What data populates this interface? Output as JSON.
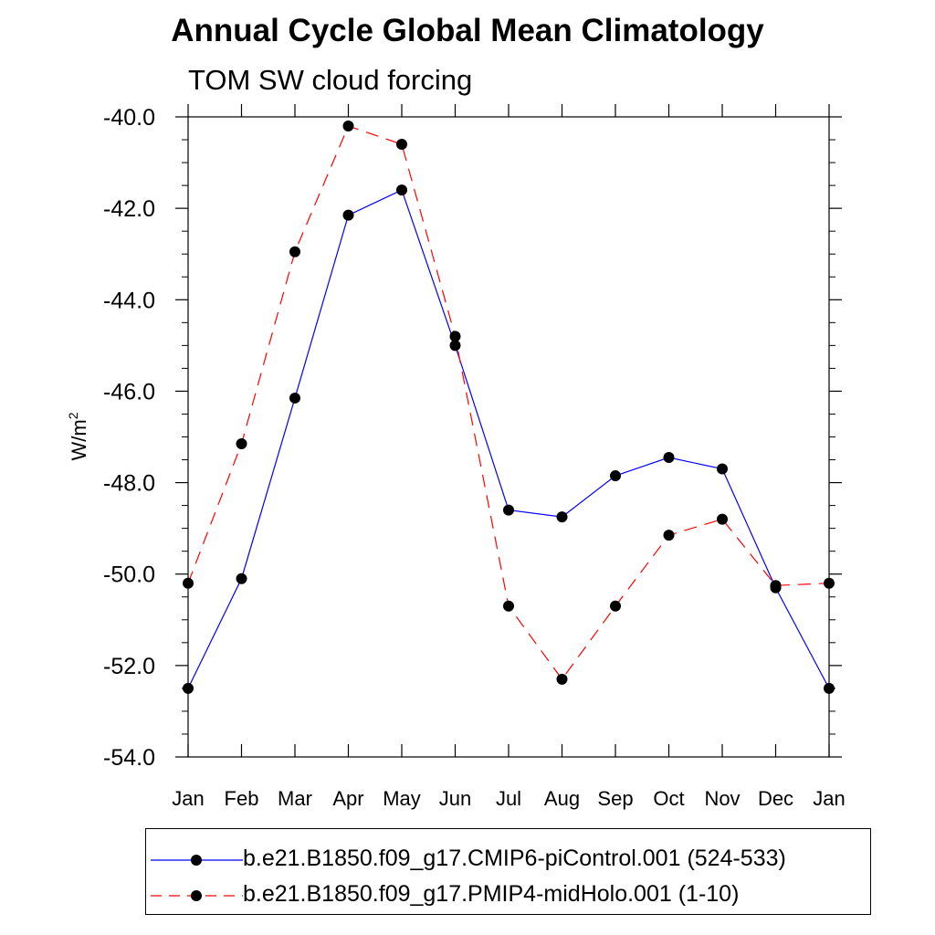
{
  "chart_data": {
    "type": "line",
    "title": "Annual Cycle Global Mean Climatology",
    "subtitle": "TOM SW cloud forcing",
    "xlabel": "",
    "ylabel_base": "W/m",
    "ylabel_sup": "2",
    "categories": [
      "Jan",
      "Feb",
      "Mar",
      "Apr",
      "May",
      "Jun",
      "Jul",
      "Aug",
      "Sep",
      "Oct",
      "Nov",
      "Dec",
      "Jan"
    ],
    "ylim": [
      -54.0,
      -40.0
    ],
    "yticks": [
      "-40.0",
      "-42.0",
      "-44.0",
      "-46.0",
      "-48.0",
      "-50.0",
      "-52.0",
      "-54.0"
    ],
    "ytick_values": [
      -40,
      -42,
      -44,
      -46,
      -48,
      -50,
      -52,
      -54
    ],
    "series": [
      {
        "name": "b.e21.B1850.f09_g17.CMIP6-piControl.001 (524-533)",
        "color": "#0000ff",
        "line_style": "solid",
        "values": [
          -52.5,
          -50.1,
          -46.15,
          -42.15,
          -41.6,
          -45.0,
          -48.6,
          -48.75,
          -47.85,
          -47.45,
          -47.7,
          -50.3,
          -52.5
        ]
      },
      {
        "name": "b.e21.B1850.f09_g17.PMIP4-midHolo.001 (1-10)",
        "color": "#ff0000",
        "line_style": "dashed",
        "values": [
          -50.2,
          -47.15,
          -42.95,
          -40.2,
          -40.6,
          -44.8,
          -50.7,
          -52.3,
          -50.7,
          -49.15,
          -48.8,
          -50.25,
          -50.2
        ]
      }
    ],
    "grid": false,
    "legend_position": "bottom"
  }
}
